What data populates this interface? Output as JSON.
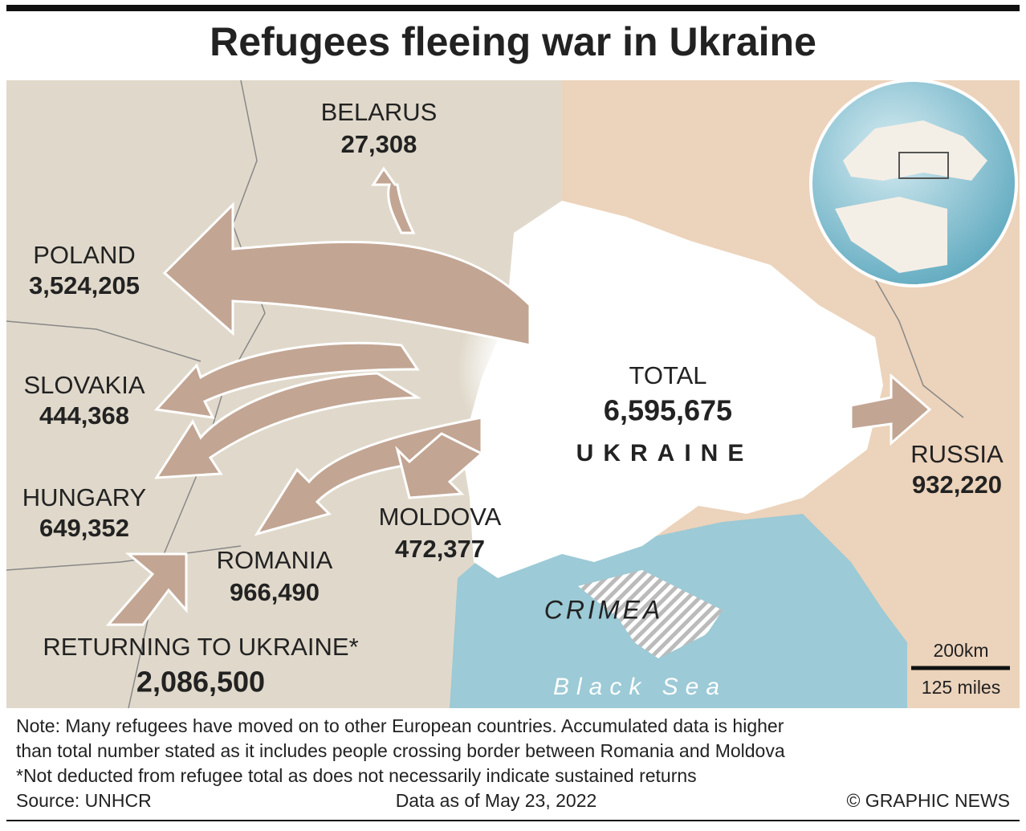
{
  "title": "Refugees fleeing war in Ukraine",
  "destinations": [
    {
      "country": "BELARUS",
      "value": "27,308"
    },
    {
      "country": "POLAND",
      "value": "3,524,205"
    },
    {
      "country": "SLOVAKIA",
      "value": "444,368"
    },
    {
      "country": "HUNGARY",
      "value": "649,352"
    },
    {
      "country": "ROMANIA",
      "value": "966,490"
    },
    {
      "country": "MOLDOVA",
      "value": "472,377"
    },
    {
      "country": "RUSSIA",
      "value": "932,220"
    }
  ],
  "total": {
    "label": "TOTAL",
    "value": "6,595,675"
  },
  "map_labels": {
    "ukraine": "UKRAINE",
    "crimea": "CRIMEA",
    "sea": "Black Sea"
  },
  "returning": {
    "label": "RETURNING TO UKRAINE*",
    "value": "2,086,500"
  },
  "scale": {
    "km": "200km",
    "miles": "125 miles"
  },
  "footer": {
    "notes": [
      "Note: Many refugees have moved on to other European countries. Accumulated data is higher",
      "than total number stated as it includes people crossing border between Romania and Moldova",
      "*Not deducted from refugee total as does not necessarily indicate sustained returns"
    ],
    "source": "Source: UNHCR",
    "date": "Data as of May 23, 2022",
    "credit": "© GRAPHIC NEWS"
  }
}
